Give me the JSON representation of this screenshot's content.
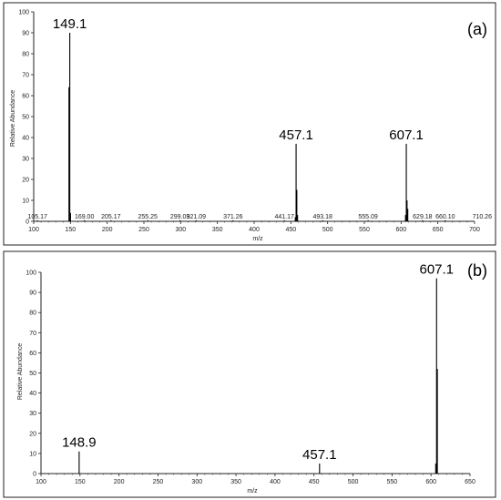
{
  "chart_data": [
    {
      "type": "bar",
      "panel_label": "(a)",
      "xlabel": "m/z",
      "ylabel": "Relative Abundance",
      "xlim": [
        100,
        700
      ],
      "ylim": [
        0,
        100
      ],
      "x_ticks": [
        100,
        150,
        200,
        250,
        300,
        350,
        400,
        450,
        500,
        550,
        600,
        650,
        700
      ],
      "y_ticks": [
        0,
        10,
        20,
        30,
        40,
        50,
        60,
        70,
        80,
        90,
        100
      ],
      "peaks": [
        {
          "x": 105.17,
          "y": 0.5
        },
        {
          "x": 148.0,
          "y": 64
        },
        {
          "x": 149.1,
          "y": 90
        },
        {
          "x": 150.1,
          "y": 4
        },
        {
          "x": 169.0,
          "y": 0.5
        },
        {
          "x": 205.17,
          "y": 0.5
        },
        {
          "x": 255.25,
          "y": 0.5
        },
        {
          "x": 299.09,
          "y": 0.5
        },
        {
          "x": 321.09,
          "y": 0.5
        },
        {
          "x": 371.26,
          "y": 0.5
        },
        {
          "x": 441.17,
          "y": 0.5
        },
        {
          "x": 456.0,
          "y": 2
        },
        {
          "x": 457.1,
          "y": 37
        },
        {
          "x": 458.1,
          "y": 15
        },
        {
          "x": 459.1,
          "y": 3
        },
        {
          "x": 493.18,
          "y": 0.5
        },
        {
          "x": 555.09,
          "y": 0.5
        },
        {
          "x": 606.0,
          "y": 3
        },
        {
          "x": 607.1,
          "y": 37
        },
        {
          "x": 608.1,
          "y": 10
        },
        {
          "x": 609.1,
          "y": 6
        },
        {
          "x": 629.18,
          "y": 0.5
        },
        {
          "x": 660.1,
          "y": 0.5
        },
        {
          "x": 710.26,
          "y": 0.5
        }
      ],
      "small_labels": [
        {
          "x": 105.17,
          "text": "105.17"
        },
        {
          "x": 169.0,
          "text": "169.00"
        },
        {
          "x": 205.17,
          "text": "205.17"
        },
        {
          "x": 255.25,
          "text": "255.25"
        },
        {
          "x": 299.09,
          "text": "299.09"
        },
        {
          "x": 321.09,
          "text": "321.09"
        },
        {
          "x": 371.26,
          "text": "371.26"
        },
        {
          "x": 441.17,
          "text": "441.17"
        },
        {
          "x": 493.18,
          "text": "493.18"
        },
        {
          "x": 555.09,
          "text": "555.09"
        },
        {
          "x": 629.18,
          "text": "629.18"
        },
        {
          "x": 660.1,
          "text": "660.10"
        },
        {
          "x": 710.26,
          "text": "710.26"
        }
      ],
      "big_labels": [
        {
          "x": 149.1,
          "y": 90,
          "text": "149.1"
        },
        {
          "x": 457.1,
          "y": 37,
          "text": "457.1"
        },
        {
          "x": 607.1,
          "y": 37,
          "text": "607.1"
        }
      ]
    },
    {
      "type": "bar",
      "panel_label": "(b)",
      "xlabel": "m/z",
      "ylabel": "Relative Abundance",
      "xlim": [
        100,
        650
      ],
      "ylim": [
        0,
        100
      ],
      "x_ticks": [
        100,
        150,
        200,
        250,
        300,
        350,
        400,
        450,
        500,
        550,
        600,
        650
      ],
      "y_ticks": [
        0,
        10,
        20,
        30,
        40,
        50,
        60,
        70,
        80,
        90,
        100
      ],
      "peaks": [
        {
          "x": 148.9,
          "y": 11
        },
        {
          "x": 457.1,
          "y": 5
        },
        {
          "x": 606.0,
          "y": 5
        },
        {
          "x": 607.1,
          "y": 97
        },
        {
          "x": 608.1,
          "y": 52
        }
      ],
      "small_labels": [],
      "big_labels": [
        {
          "x": 148.9,
          "y": 11,
          "text": "148.9"
        },
        {
          "x": 457.1,
          "y": 5,
          "text": "457.1"
        },
        {
          "x": 607.1,
          "y": 97,
          "text": "607.1"
        }
      ]
    }
  ]
}
